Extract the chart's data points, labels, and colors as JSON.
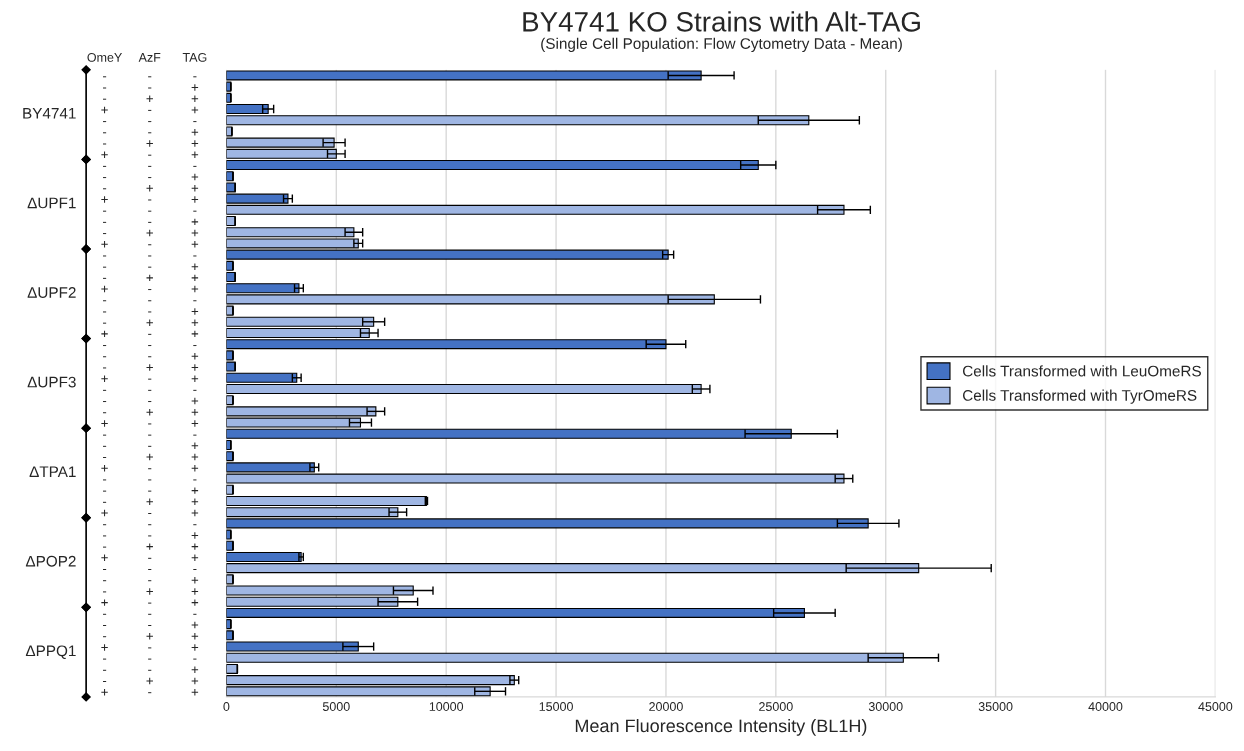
{
  "chart_data": {
    "type": "bar",
    "orientation": "horizontal",
    "title": "BY4741 KO Strains with Alt-TAG",
    "subtitle": "(Single Cell Population: Flow Cytometry Data - Mean)",
    "xlabel": "Mean Fluorescence Intensity (BL1H)",
    "annotations": [
      "OmeY",
      "AzF",
      "TAG",
      "BY4741",
      "ΔUPF1",
      "ΔUPF2",
      "ΔUPF3",
      "ΔTPA1",
      "ΔPOP2",
      "ΔPPQ1"
    ],
    "categories": [
      "-     -     -",
      "-     -     +",
      "-     +     +",
      "+     -     +",
      "-     -     -",
      "-     -     +",
      "-     +     +",
      "+     -     +",
      "-     -     -",
      "-     -     +",
      "-     +     +",
      "+     -     +",
      "-     -     -",
      "-     -     +",
      "-     +     +",
      "+     -     +",
      "-     -     -",
      "-     -     +",
      "-     +     +",
      "+     -     +",
      "-     -     -",
      "-     -     +",
      "-     +     +",
      "+     -     +",
      "-     -     -",
      "-     -     +",
      "-     +     +",
      "+     -     +",
      "-     -     -",
      "-     -     +",
      "-     +     +",
      "+     -     +",
      "-     -     -",
      "-     -     +",
      "-     +     +",
      "+     -     +",
      "-     -     -",
      "-     -     +",
      "-     +     +",
      "+     -     +",
      "-     -     -",
      "-     -     +",
      "-     +     +",
      "+     -     +",
      "-     -     -",
      "-     -     +",
      "-     +     +",
      "+     -     +",
      "-     -     -",
      "-     -     +",
      "-     +     +",
      "+     -     +",
      "-     -     -",
      "-     -     +",
      "-     +     +",
      "+     -     +"
    ],
    "series": [
      {
        "name": "Cells Transformed with LeuOmeRS",
        "color": "#4472c4",
        "values": [
          21600,
          200,
          200,
          1900,
          null,
          null,
          null,
          null,
          24200,
          300,
          400,
          2800,
          null,
          null,
          null,
          null,
          20100,
          300,
          400,
          3300,
          null,
          null,
          null,
          null,
          20000,
          300,
          400,
          3200,
          null,
          null,
          null,
          null,
          25700,
          200,
          300,
          4000,
          null,
          null,
          null,
          null,
          29200,
          200,
          300,
          3400,
          null,
          null,
          null,
          null,
          26300,
          200,
          300,
          6000,
          null,
          null,
          null,
          null
        ],
        "errors": [
          1500,
          null,
          null,
          250,
          null,
          null,
          null,
          null,
          800,
          null,
          null,
          200,
          null,
          null,
          null,
          null,
          250,
          null,
          null,
          200,
          null,
          null,
          null,
          null,
          900,
          null,
          null,
          200,
          null,
          null,
          null,
          null,
          2100,
          null,
          null,
          200,
          null,
          null,
          null,
          null,
          1400,
          null,
          null,
          100,
          null,
          null,
          null,
          null,
          1400,
          null,
          null,
          700,
          null,
          null,
          null,
          null
        ]
      },
      {
        "name": "Cells Transformed with TyrOmeRS",
        "color": "#9fb6e3",
        "values": [
          null,
          null,
          null,
          null,
          26500,
          250,
          4900,
          5000,
          null,
          null,
          null,
          null,
          28100,
          400,
          5800,
          6000,
          null,
          null,
          null,
          null,
          22200,
          300,
          6700,
          6500,
          null,
          null,
          null,
          null,
          21600,
          300,
          6800,
          6100,
          null,
          null,
          null,
          null,
          28100,
          300,
          9100,
          7800,
          null,
          null,
          null,
          null,
          31500,
          300,
          8500,
          7800,
          null,
          null,
          null,
          null,
          30800,
          500,
          13100,
          12000
        ],
        "errors": [
          null,
          null,
          null,
          null,
          2300,
          null,
          500,
          400,
          null,
          null,
          null,
          null,
          1200,
          null,
          400,
          200,
          null,
          null,
          null,
          null,
          2100,
          null,
          500,
          400,
          null,
          null,
          null,
          null,
          400,
          null,
          400,
          500,
          null,
          null,
          null,
          null,
          400,
          null,
          50,
          400,
          null,
          null,
          null,
          null,
          3300,
          null,
          900,
          900,
          null,
          null,
          null,
          null,
          1600,
          null,
          200,
          700
        ]
      }
    ],
    "xlim": [
      0,
      45000
    ],
    "xticks": [
      0,
      5000,
      10000,
      15000,
      20000,
      25000,
      30000,
      35000,
      40000,
      45000
    ],
    "grid": "x",
    "legend": "center right"
  }
}
